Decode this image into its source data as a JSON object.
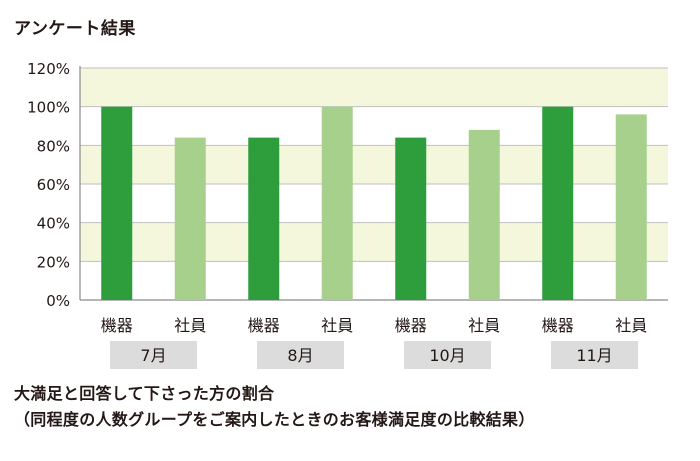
{
  "header": {
    "title": "アンケート結果"
  },
  "captions": {
    "line1": "大満足と回答して下さった方の割合",
    "line2": "（同程度の人数グループをご案内したときのお客様満足度の比較結果）"
  },
  "colors": {
    "band": "#f5f7dc",
    "axis": "#8a8a8a",
    "gridline": "#bfbfbf",
    "month_box": "#dcdcdc",
    "series_dark": "#2e9e3c",
    "series_light": "#a8d08d"
  },
  "chart_data": {
    "type": "bar",
    "title": "アンケート結果",
    "ylim": [
      0,
      120
    ],
    "y_ticks": [
      "0%",
      "20%",
      "40%",
      "60%",
      "80%",
      "100%",
      "120%"
    ],
    "categories": [
      "機器",
      "社員",
      "機器",
      "社員",
      "機器",
      "社員",
      "機器",
      "社員"
    ],
    "groups": [
      "7月",
      "8月",
      "10月",
      "11月"
    ],
    "values": [
      100,
      84,
      84,
      100,
      84,
      88,
      100,
      96
    ],
    "bar_colors": [
      "dark",
      "light",
      "dark",
      "light",
      "dark",
      "light",
      "dark",
      "light"
    ],
    "grid": true,
    "legend": "none"
  }
}
